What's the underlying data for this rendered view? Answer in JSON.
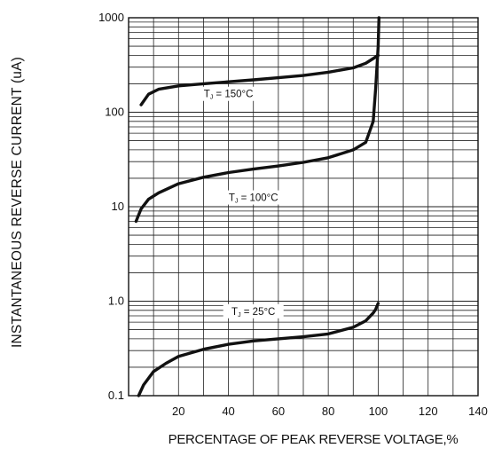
{
  "chart_data": {
    "type": "line",
    "xlabel": "PERCENTAGE OF PEAK REVERSE VOLTAGE,%",
    "ylabel": "INSTANTANEOUS REVERSE CURRENT (uA)",
    "x_ticks": [
      "20",
      "40",
      "60",
      "80",
      "100",
      "120",
      "140"
    ],
    "y_ticks": [
      "0.1",
      "1.0",
      "10",
      "100",
      "1000"
    ],
    "xlim": [
      0,
      140
    ],
    "ylim": [
      0.1,
      1000
    ],
    "y_scale": "log",
    "grid": true,
    "series": [
      {
        "name": "TJ = 150°C",
        "label_text": "T",
        "label_sub": "J",
        "label_rest": " = 150°C",
        "x": [
          5,
          8,
          12,
          20,
          30,
          40,
          50,
          60,
          70,
          80,
          90,
          95,
          98,
          100
        ],
        "y": [
          120,
          155,
          175,
          190,
          200,
          210,
          220,
          232,
          245,
          265,
          295,
          330,
          370,
          400
        ]
      },
      {
        "name": "TJ = 100°C",
        "label_text": "T",
        "label_sub": "J",
        "label_rest": " = 100°C",
        "x": [
          3,
          5,
          8,
          12,
          20,
          30,
          40,
          50,
          60,
          70,
          80,
          90,
          95,
          98,
          99,
          100,
          100.3
        ],
        "y": [
          7,
          9.5,
          12,
          14,
          17.5,
          20.5,
          23,
          25,
          27,
          29.5,
          33,
          40,
          48,
          80,
          180,
          500,
          1000
        ]
      },
      {
        "name": "TJ = 25°C",
        "label_text": "T",
        "label_sub": "J",
        "label_rest": " = 25°C",
        "x": [
          4,
          6,
          10,
          15,
          20,
          30,
          40,
          50,
          60,
          70,
          80,
          90,
          95,
          98,
          99,
          100
        ],
        "y": [
          0.1,
          0.13,
          0.18,
          0.22,
          0.26,
          0.31,
          0.35,
          0.38,
          0.4,
          0.42,
          0.45,
          0.53,
          0.62,
          0.75,
          0.82,
          0.95
        ]
      }
    ]
  }
}
